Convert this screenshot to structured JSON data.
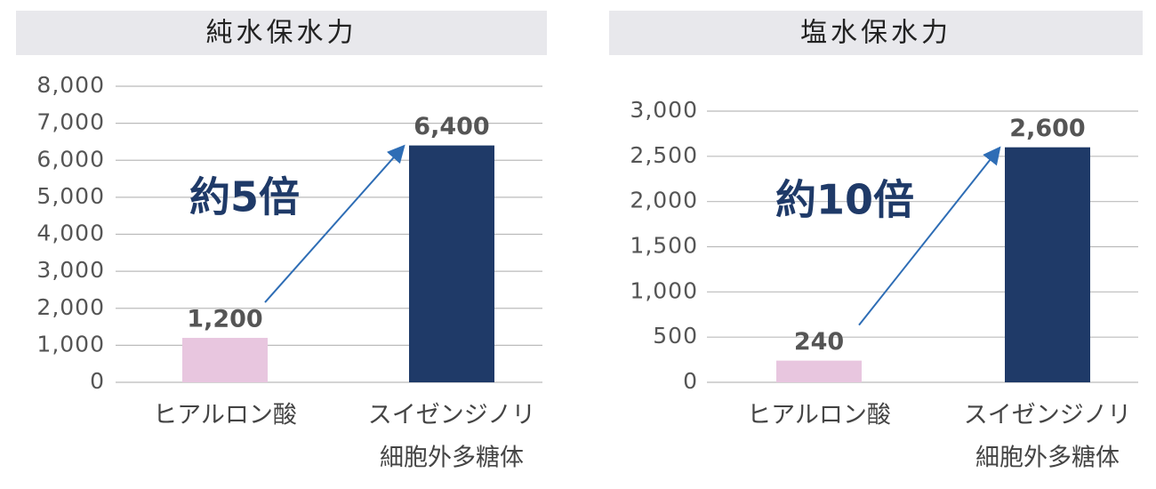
{
  "chart_data": [
    {
      "type": "bar",
      "title": "純水保水力",
      "categories": [
        [
          "ヒアルロン酸"
        ],
        [
          "スイゼンジノリ",
          "細胞外多糖体"
        ]
      ],
      "values": [
        1200,
        6400
      ],
      "value_labels": [
        "1,200",
        "6,400"
      ],
      "colors": [
        "#e8c6df",
        "#1f3a68"
      ],
      "ylim": [
        0,
        8000
      ],
      "yticks": [
        0,
        {
          "value": 1000,
          "label": "1,000"
        },
        {
          "value": 2000,
          "label": "2,000"
        },
        {
          "value": 3000,
          "label": "3,000"
        },
        {
          "value": 4000,
          "label": "4,000"
        },
        {
          "value": 5000,
          "label": "5,000"
        },
        {
          "value": 6000,
          "label": "6,000"
        },
        {
          "value": 7000,
          "label": "7,000"
        },
        {
          "value": 8000,
          "label": "8,000"
        }
      ],
      "grid": true,
      "annotation": "約5倍"
    },
    {
      "type": "bar",
      "title": "塩水保水力",
      "categories": [
        [
          "ヒアルロン酸"
        ],
        [
          "スイゼンジノリ",
          "細胞外多糖体"
        ]
      ],
      "values": [
        240,
        2600
      ],
      "value_labels": [
        "240",
        "2,600"
      ],
      "colors": [
        "#e8c6df",
        "#1f3a68"
      ],
      "ylim": [
        0,
        3000
      ],
      "yticks": [
        0,
        500,
        {
          "value": 1000,
          "label": "1,000"
        },
        {
          "value": 1500,
          "label": "1,500"
        },
        {
          "value": 2000,
          "label": "2,000"
        },
        {
          "value": 2500,
          "label": "2,500"
        },
        {
          "value": 3000,
          "label": "3,000"
        }
      ],
      "grid": true,
      "annotation": "約10倍"
    }
  ]
}
